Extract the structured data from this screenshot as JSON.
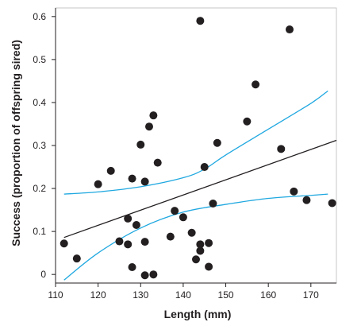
{
  "chart_data": {
    "type": "scatter",
    "title": "",
    "xlabel": "Length (mm)",
    "ylabel": "Success (proportion of offspring sired)",
    "xlim": [
      110,
      176
    ],
    "ylim": [
      -0.02,
      0.62
    ],
    "xticks": [
      "110",
      "120",
      "130",
      "140",
      "150",
      "160",
      "170"
    ],
    "yticks": [
      "0",
      "0.1",
      "0.2",
      "0.3",
      "0.4",
      "0.5",
      "0.6"
    ],
    "grid": false,
    "colors": {
      "points": "#231f20",
      "regression": "#231f20",
      "confidence": "#1fa8e0"
    },
    "points": [
      {
        "x": 112,
        "y": 0.072
      },
      {
        "x": 115,
        "y": 0.037
      },
      {
        "x": 120,
        "y": 0.21
      },
      {
        "x": 123,
        "y": 0.241
      },
      {
        "x": 125,
        "y": 0.077
      },
      {
        "x": 127,
        "y": 0.13
      },
      {
        "x": 127,
        "y": 0.07
      },
      {
        "x": 128,
        "y": 0.223
      },
      {
        "x": 128,
        "y": 0.017
      },
      {
        "x": 129,
        "y": 0.115
      },
      {
        "x": 130,
        "y": 0.302
      },
      {
        "x": 131,
        "y": 0.216
      },
      {
        "x": 131,
        "y": 0.076
      },
      {
        "x": 131,
        "y": -0.002
      },
      {
        "x": 132,
        "y": 0.344
      },
      {
        "x": 133,
        "y": 0.37
      },
      {
        "x": 133,
        "y": 0.0
      },
      {
        "x": 134,
        "y": 0.26
      },
      {
        "x": 137,
        "y": 0.088
      },
      {
        "x": 138,
        "y": 0.148
      },
      {
        "x": 140,
        "y": 0.133
      },
      {
        "x": 142,
        "y": 0.097
      },
      {
        "x": 143,
        "y": 0.035
      },
      {
        "x": 144,
        "y": 0.07
      },
      {
        "x": 144,
        "y": 0.055
      },
      {
        "x": 144,
        "y": 0.59
      },
      {
        "x": 145,
        "y": 0.25
      },
      {
        "x": 146,
        "y": 0.073
      },
      {
        "x": 146,
        "y": 0.018
      },
      {
        "x": 147,
        "y": 0.165
      },
      {
        "x": 148,
        "y": 0.306
      },
      {
        "x": 155,
        "y": 0.356
      },
      {
        "x": 157,
        "y": 0.442
      },
      {
        "x": 163,
        "y": 0.292
      },
      {
        "x": 165,
        "y": 0.57
      },
      {
        "x": 166,
        "y": 0.193
      },
      {
        "x": 169,
        "y": 0.173
      },
      {
        "x": 175,
        "y": 0.166
      }
    ],
    "regression_line": [
      {
        "x": 112,
        "y": 0.086
      },
      {
        "x": 176,
        "y": 0.312
      }
    ],
    "confidence_upper": [
      {
        "x": 112,
        "y": 0.187
      },
      {
        "x": 120,
        "y": 0.192
      },
      {
        "x": 130,
        "y": 0.204
      },
      {
        "x": 140,
        "y": 0.225
      },
      {
        "x": 145,
        "y": 0.245
      },
      {
        "x": 150,
        "y": 0.278
      },
      {
        "x": 160,
        "y": 0.338
      },
      {
        "x": 170,
        "y": 0.398
      },
      {
        "x": 174,
        "y": 0.427
      }
    ],
    "confidence_lower": [
      {
        "x": 112,
        "y": -0.013
      },
      {
        "x": 120,
        "y": 0.05
      },
      {
        "x": 130,
        "y": 0.108
      },
      {
        "x": 140,
        "y": 0.145
      },
      {
        "x": 150,
        "y": 0.163
      },
      {
        "x": 160,
        "y": 0.177
      },
      {
        "x": 170,
        "y": 0.184
      },
      {
        "x": 174,
        "y": 0.187
      }
    ]
  }
}
